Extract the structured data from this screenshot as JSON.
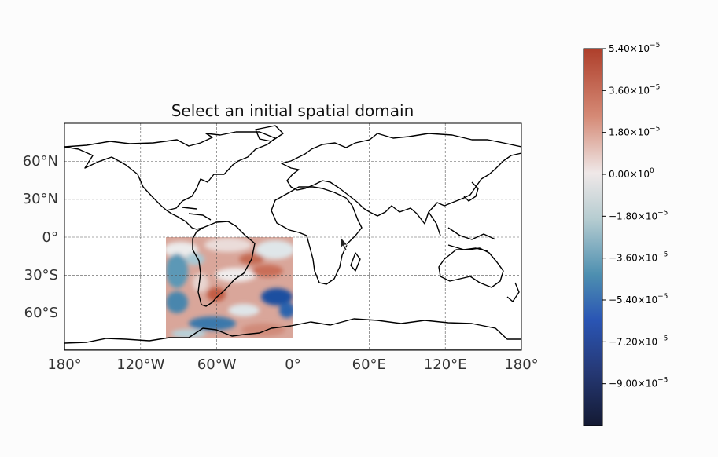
{
  "title": "Select an initial spatial domain",
  "map": {
    "lon_ticks": [
      "180°",
      "120°W",
      "60°W",
      "0°",
      "60°E",
      "120°E",
      "180°"
    ],
    "lat_ticks": [
      "60°N",
      "30°N",
      "0°",
      "30°S",
      "60°S"
    ],
    "extent": {
      "lon": [
        -180,
        180
      ],
      "lat": [
        -90,
        90
      ]
    },
    "highlighted_region": {
      "lon": [
        -100,
        0
      ],
      "lat": [
        -80,
        0
      ]
    },
    "gridlines": true,
    "projection": "PlateCarree"
  },
  "colorbar": {
    "cmap": "balance",
    "min": -0.000108,
    "max": 5.4e-05,
    "ticks": [
      {
        "value": 5.4e-05,
        "mantissa": "5.40",
        "exp": "−5"
      },
      {
        "value": 3.6e-05,
        "mantissa": "3.60",
        "exp": "−5"
      },
      {
        "value": 1.8e-05,
        "mantissa": "1.80",
        "exp": "−5"
      },
      {
        "value": 0.0,
        "mantissa": "0.00",
        "exp": "0"
      },
      {
        "value": -1.8e-05,
        "mantissa": "−1.80",
        "exp": "−5"
      },
      {
        "value": -3.6e-05,
        "mantissa": "−3.60",
        "exp": "−5"
      },
      {
        "value": -5.4e-05,
        "mantissa": "−5.40",
        "exp": "−5"
      },
      {
        "value": -7.2e-05,
        "mantissa": "−7.20",
        "exp": "−5"
      },
      {
        "value": -9e-05,
        "mantissa": "−9.00",
        "exp": "−5"
      }
    ],
    "colors": {
      "top": "#ae3f2b",
      "mid": "#efe8e8",
      "low_mid": "#3f86ad",
      "bottom": "#141a33"
    }
  }
}
